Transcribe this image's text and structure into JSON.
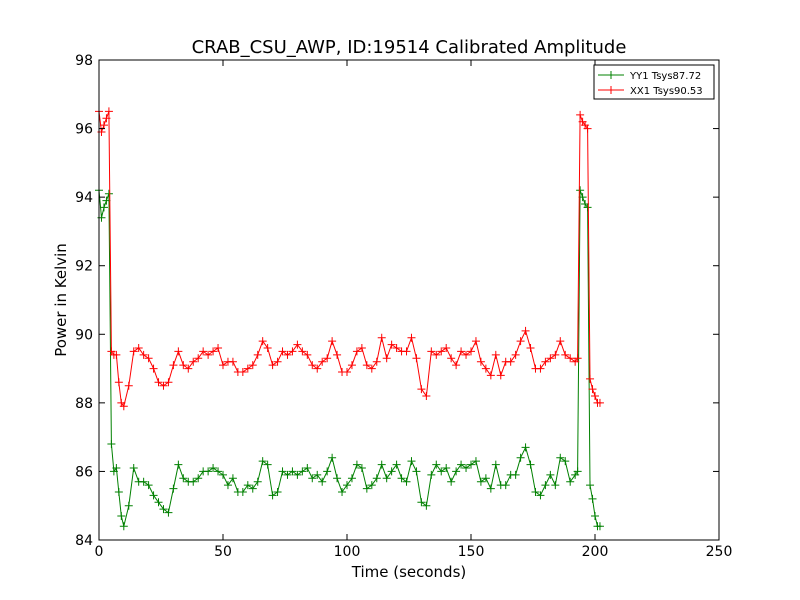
{
  "chart_data": {
    "type": "line",
    "title": "CRAB_CSU_AWP, ID:19514 Calibrated Amplitude",
    "xlabel": "Time (seconds)",
    "ylabel": "Power in Kelvin",
    "xlim": [
      0,
      250
    ],
    "ylim": [
      84,
      98
    ],
    "xticks": [
      0,
      50,
      100,
      150,
      200,
      250
    ],
    "yticks": [
      84,
      86,
      88,
      90,
      92,
      94,
      96,
      98
    ],
    "grid": false,
    "legend_position": "top-right",
    "marker": "+",
    "series": [
      {
        "name": "YY1 Tsys87.72",
        "color": "#008000",
        "points": [
          [
            0,
            94.2
          ],
          [
            1,
            93.4
          ],
          [
            2,
            93.7
          ],
          [
            3,
            93.9
          ],
          [
            4,
            94.1
          ],
          [
            5,
            86.8
          ],
          [
            6,
            86.0
          ],
          [
            7,
            86.1
          ],
          [
            8,
            85.4
          ],
          [
            9,
            84.7
          ],
          [
            10,
            84.4
          ],
          [
            12,
            85.0
          ],
          [
            14,
            86.1
          ],
          [
            16,
            85.7
          ],
          [
            18,
            85.7
          ],
          [
            20,
            85.6
          ],
          [
            22,
            85.3
          ],
          [
            24,
            85.1
          ],
          [
            26,
            84.9
          ],
          [
            28,
            84.8
          ],
          [
            30,
            85.5
          ],
          [
            32,
            86.2
          ],
          [
            34,
            85.8
          ],
          [
            36,
            85.7
          ],
          [
            38,
            85.7
          ],
          [
            40,
            85.8
          ],
          [
            42,
            86.0
          ],
          [
            44,
            86.0
          ],
          [
            46,
            86.1
          ],
          [
            48,
            86.0
          ],
          [
            50,
            85.9
          ],
          [
            52,
            85.6
          ],
          [
            54,
            85.8
          ],
          [
            56,
            85.4
          ],
          [
            58,
            85.4
          ],
          [
            60,
            85.6
          ],
          [
            62,
            85.5
          ],
          [
            64,
            85.7
          ],
          [
            66,
            86.3
          ],
          [
            68,
            86.2
          ],
          [
            70,
            85.3
          ],
          [
            72,
            85.4
          ],
          [
            74,
            86.0
          ],
          [
            76,
            85.9
          ],
          [
            78,
            86.0
          ],
          [
            80,
            85.9
          ],
          [
            82,
            86.0
          ],
          [
            84,
            86.1
          ],
          [
            86,
            85.8
          ],
          [
            88,
            85.9
          ],
          [
            90,
            85.7
          ],
          [
            92,
            86.0
          ],
          [
            94,
            86.4
          ],
          [
            96,
            85.8
          ],
          [
            98,
            85.4
          ],
          [
            100,
            85.6
          ],
          [
            102,
            85.8
          ],
          [
            104,
            86.2
          ],
          [
            106,
            86.1
          ],
          [
            108,
            85.5
          ],
          [
            110,
            85.6
          ],
          [
            112,
            85.8
          ],
          [
            114,
            86.2
          ],
          [
            116,
            85.8
          ],
          [
            118,
            86.0
          ],
          [
            120,
            86.2
          ],
          [
            122,
            85.8
          ],
          [
            124,
            85.7
          ],
          [
            126,
            86.3
          ],
          [
            128,
            86.0
          ],
          [
            130,
            85.1
          ],
          [
            132,
            85.0
          ],
          [
            134,
            85.9
          ],
          [
            136,
            86.2
          ],
          [
            138,
            86.0
          ],
          [
            140,
            86.1
          ],
          [
            142,
            85.7
          ],
          [
            144,
            86.0
          ],
          [
            146,
            86.2
          ],
          [
            148,
            86.1
          ],
          [
            150,
            86.2
          ],
          [
            152,
            86.3
          ],
          [
            154,
            85.7
          ],
          [
            156,
            85.8
          ],
          [
            158,
            85.5
          ],
          [
            160,
            86.2
          ],
          [
            162,
            85.6
          ],
          [
            164,
            85.6
          ],
          [
            166,
            85.9
          ],
          [
            168,
            85.9
          ],
          [
            170,
            86.4
          ],
          [
            172,
            86.7
          ],
          [
            174,
            86.2
          ],
          [
            176,
            85.4
          ],
          [
            178,
            85.3
          ],
          [
            180,
            85.6
          ],
          [
            182,
            85.9
          ],
          [
            184,
            85.6
          ],
          [
            186,
            86.4
          ],
          [
            188,
            86.3
          ],
          [
            190,
            85.7
          ],
          [
            192,
            85.9
          ],
          [
            193,
            86.0
          ],
          [
            194,
            94.2
          ],
          [
            195,
            94.0
          ],
          [
            196,
            93.8
          ],
          [
            197,
            93.7
          ],
          [
            198,
            85.6
          ],
          [
            199,
            85.2
          ],
          [
            200,
            84.7
          ],
          [
            201,
            84.4
          ],
          [
            202,
            84.4
          ]
        ]
      },
      {
        "name": "XX1 Tsys90.53",
        "color": "#ff0000",
        "points": [
          [
            0,
            96.5
          ],
          [
            1,
            95.9
          ],
          [
            2,
            96.1
          ],
          [
            3,
            96.3
          ],
          [
            4,
            96.5
          ],
          [
            5,
            89.5
          ],
          [
            6,
            89.4
          ],
          [
            7,
            89.4
          ],
          [
            8,
            88.6
          ],
          [
            9,
            88.0
          ],
          [
            10,
            87.9
          ],
          [
            12,
            88.5
          ],
          [
            14,
            89.5
          ],
          [
            16,
            89.6
          ],
          [
            18,
            89.4
          ],
          [
            20,
            89.3
          ],
          [
            22,
            89.0
          ],
          [
            24,
            88.6
          ],
          [
            26,
            88.5
          ],
          [
            28,
            88.6
          ],
          [
            30,
            89.1
          ],
          [
            32,
            89.5
          ],
          [
            34,
            89.1
          ],
          [
            36,
            89.0
          ],
          [
            38,
            89.2
          ],
          [
            40,
            89.3
          ],
          [
            42,
            89.5
          ],
          [
            44,
            89.4
          ],
          [
            46,
            89.5
          ],
          [
            48,
            89.6
          ],
          [
            50,
            89.1
          ],
          [
            52,
            89.2
          ],
          [
            54,
            89.2
          ],
          [
            56,
            88.9
          ],
          [
            58,
            88.9
          ],
          [
            60,
            89.0
          ],
          [
            62,
            89.1
          ],
          [
            64,
            89.4
          ],
          [
            66,
            89.8
          ],
          [
            68,
            89.6
          ],
          [
            70,
            89.1
          ],
          [
            72,
            89.2
          ],
          [
            74,
            89.5
          ],
          [
            76,
            89.4
          ],
          [
            78,
            89.5
          ],
          [
            80,
            89.7
          ],
          [
            82,
            89.5
          ],
          [
            84,
            89.4
          ],
          [
            86,
            89.1
          ],
          [
            88,
            89.0
          ],
          [
            90,
            89.2
          ],
          [
            92,
            89.3
          ],
          [
            94,
            89.8
          ],
          [
            96,
            89.4
          ],
          [
            98,
            88.9
          ],
          [
            100,
            88.9
          ],
          [
            102,
            89.1
          ],
          [
            104,
            89.5
          ],
          [
            106,
            89.6
          ],
          [
            108,
            89.1
          ],
          [
            110,
            89.0
          ],
          [
            112,
            89.2
          ],
          [
            114,
            89.9
          ],
          [
            116,
            89.3
          ],
          [
            118,
            89.7
          ],
          [
            120,
            89.6
          ],
          [
            122,
            89.5
          ],
          [
            124,
            89.5
          ],
          [
            126,
            89.9
          ],
          [
            128,
            89.3
          ],
          [
            130,
            88.4
          ],
          [
            132,
            88.2
          ],
          [
            134,
            89.5
          ],
          [
            136,
            89.4
          ],
          [
            138,
            89.5
          ],
          [
            140,
            89.6
          ],
          [
            142,
            89.3
          ],
          [
            144,
            89.1
          ],
          [
            146,
            89.5
          ],
          [
            148,
            89.4
          ],
          [
            150,
            89.5
          ],
          [
            152,
            89.8
          ],
          [
            154,
            89.2
          ],
          [
            156,
            89.0
          ],
          [
            158,
            88.8
          ],
          [
            160,
            89.4
          ],
          [
            162,
            88.8
          ],
          [
            164,
            89.2
          ],
          [
            166,
            89.2
          ],
          [
            168,
            89.4
          ],
          [
            170,
            89.8
          ],
          [
            172,
            90.1
          ],
          [
            174,
            89.6
          ],
          [
            176,
            89.0
          ],
          [
            178,
            89.0
          ],
          [
            180,
            89.2
          ],
          [
            182,
            89.3
          ],
          [
            184,
            89.4
          ],
          [
            186,
            89.8
          ],
          [
            188,
            89.4
          ],
          [
            190,
            89.3
          ],
          [
            192,
            89.2
          ],
          [
            193,
            89.3
          ],
          [
            194,
            96.4
          ],
          [
            195,
            96.2
          ],
          [
            196,
            96.1
          ],
          [
            197,
            96.0
          ],
          [
            198,
            88.7
          ],
          [
            199,
            88.4
          ],
          [
            200,
            88.2
          ],
          [
            201,
            88.0
          ],
          [
            202,
            88.0
          ]
        ]
      }
    ]
  }
}
